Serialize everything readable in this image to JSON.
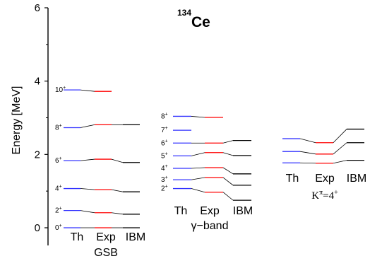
{
  "chart_data": {
    "type": "level-scheme",
    "title": {
      "prefix": "134",
      "element": "Ce"
    },
    "ylabel": "Energy    [MeV]",
    "ylim": [
      0,
      6
    ],
    "yticks": [
      "0",
      "2",
      "4",
      "6"
    ],
    "colors": {
      "Th": "#3333ff",
      "Exp": "#ff0000",
      "IBM": "#000000",
      "connector": "#000000"
    },
    "column_labels": [
      "Th",
      "Exp",
      "IBM"
    ],
    "groups": [
      {
        "name": "GSB",
        "spin_labels": [
          {
            "base": "0",
            "sup": "+",
            "energy": 0.0
          },
          {
            "base": "2",
            "sup": "+",
            "energy": 0.47
          },
          {
            "base": "4",
            "sup": "+",
            "energy": 1.07
          },
          {
            "base": "6",
            "sup": "+",
            "energy": 1.83
          },
          {
            "base": "8",
            "sup": "+",
            "energy": 2.73
          },
          {
            "base": "10",
            "sup": "+",
            "energy": 3.76
          }
        ],
        "Th": [
          0.0,
          0.47,
          1.07,
          1.83,
          2.73,
          3.76
        ],
        "Exp": [
          0.0,
          0.41,
          1.04,
          1.87,
          2.81,
          3.72
        ],
        "IBM": [
          0.0,
          0.37,
          0.98,
          1.78,
          2.81,
          null
        ]
      },
      {
        "name": "γ−band",
        "spin_labels": [
          {
            "base": "2",
            "sup": "+",
            "energy": 1.07
          },
          {
            "base": "3",
            "sup": "+",
            "energy": 1.31
          },
          {
            "base": "4",
            "sup": "+",
            "energy": 1.62
          },
          {
            "base": "5",
            "sup": "+",
            "energy": 1.96
          },
          {
            "base": "6",
            "sup": "+",
            "energy": 2.31
          },
          {
            "base": "7",
            "sup": "+",
            "energy": 2.66
          },
          {
            "base": "8",
            "sup": "+",
            "energy": 3.04
          }
        ],
        "Th": [
          1.07,
          1.31,
          1.62,
          1.96,
          2.31,
          2.66,
          3.04
        ],
        "Exp": [
          0.97,
          1.37,
          1.64,
          2.05,
          2.31,
          null,
          3.01
        ],
        "IBM": [
          0.75,
          1.16,
          1.47,
          1.97,
          2.38,
          null,
          null
        ]
      },
      {
        "name": "Kπ=4+",
        "label_parts": {
          "base": "K",
          "sup": "π",
          "rest": "=4",
          "rest_sup": "+"
        },
        "spin_labels": [],
        "Th": [
          1.77,
          2.08,
          2.43
        ],
        "Exp": [
          1.76,
          2.01,
          2.32
        ],
        "IBM": [
          1.84,
          2.32,
          2.69
        ]
      }
    ]
  }
}
